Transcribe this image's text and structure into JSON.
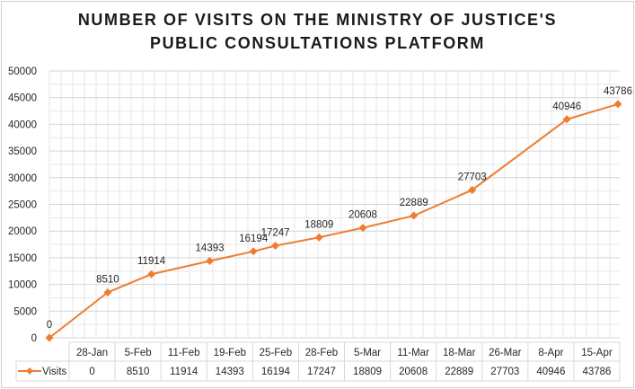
{
  "chart_data": {
    "type": "line",
    "title_lines": [
      "NUMBER OF VISITS ON THE MINISTRY OF JUSTICE'S",
      "PUBLIC CONSULTATIONS PLATFORM"
    ],
    "categories": [
      "28-Jan",
      "5-Feb",
      "11-Feb",
      "19-Feb",
      "25-Feb",
      "28-Feb",
      "5-Mar",
      "11-Mar",
      "18-Mar",
      "26-Mar",
      "8-Apr",
      "15-Apr"
    ],
    "day_offsets": [
      0,
      8,
      14,
      22,
      28,
      31,
      37,
      43,
      50,
      58,
      71,
      78
    ],
    "series": [
      {
        "name": "Visits",
        "color": "#ED7D31",
        "marker": "diamond",
        "values": [
          0,
          8510,
          11914,
          14393,
          16194,
          17247,
          18809,
          20608,
          22889,
          27703,
          40946,
          43786
        ]
      }
    ],
    "ylim": [
      0,
      50000
    ],
    "yticks": [
      0,
      5000,
      10000,
      15000,
      20000,
      25000,
      30000,
      35000,
      40000,
      45000,
      50000
    ],
    "grid": true,
    "data_labels": true,
    "data_table": true,
    "legend": "in data table"
  }
}
